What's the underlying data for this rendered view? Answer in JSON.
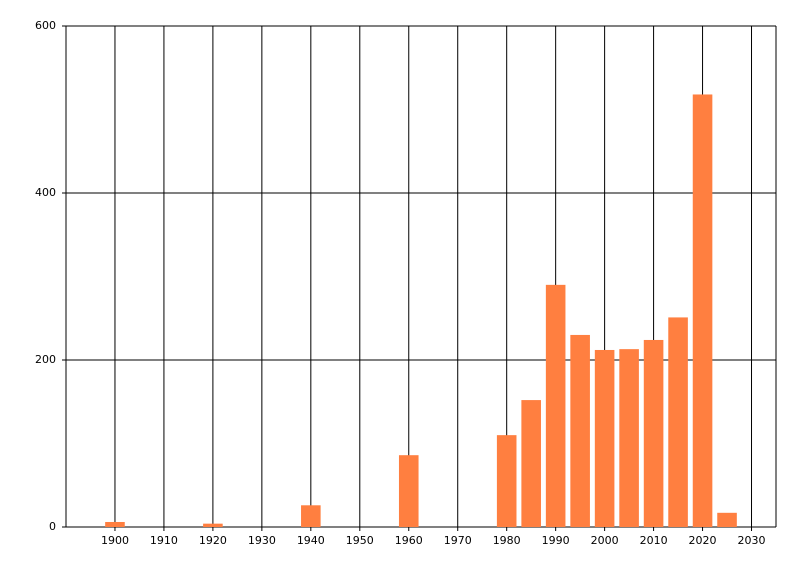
{
  "chart_data": {
    "type": "bar",
    "x": [
      1900,
      1920,
      1940,
      1960,
      1980,
      1985,
      1990,
      1995,
      2000,
      2005,
      2010,
      2015,
      2020,
      2025
    ],
    "values": [
      6,
      4,
      26,
      86,
      110,
      152,
      290,
      230,
      212,
      213,
      224,
      251,
      518,
      17
    ],
    "color": "#ff7f40",
    "xlim": [
      1890,
      2035
    ],
    "xticks": [
      1900,
      1910,
      1920,
      1930,
      1940,
      1950,
      1960,
      1970,
      1980,
      1990,
      2000,
      2010,
      2020,
      2030
    ],
    "ylim": [
      0,
      600
    ],
    "yticks": [
      0,
      200,
      400,
      600
    ],
    "grid": true
  }
}
